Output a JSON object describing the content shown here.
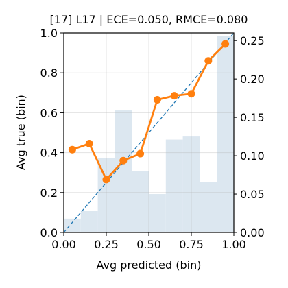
{
  "chart_data": {
    "type": "line",
    "title": "[17] L17 | ECE=0.050, RMCE=0.080",
    "xlabel": "Avg predicted (bin)",
    "ylabel": "Avg true (bin)",
    "xlim": [
      0,
      1
    ],
    "ylim": [
      0,
      1
    ],
    "ylim_right": [
      0,
      0.26
    ],
    "grid": true,
    "x_ticks": [
      "0.00",
      "0.25",
      "0.50",
      "0.75",
      "1.00"
    ],
    "y_ticks": [
      "0.0",
      "0.2",
      "0.4",
      "0.6",
      "0.8",
      "1.0"
    ],
    "y_right_ticks": [
      "0.00",
      "0.05",
      "0.10",
      "0.15",
      "0.20",
      "0.25"
    ],
    "histogram": {
      "axis": "right",
      "color": "#dce7f0",
      "bin_edges": [
        0,
        0.1,
        0.2,
        0.3,
        0.4,
        0.5,
        0.6,
        0.7,
        0.8,
        0.9,
        1.0
      ],
      "values": [
        0.018,
        0.028,
        0.097,
        0.159,
        0.08,
        0.05,
        0.121,
        0.125,
        0.066,
        0.256
      ]
    },
    "diagonal": {
      "from": [
        0,
        0
      ],
      "to": [
        1,
        1
      ],
      "color": "#1f77b4",
      "style": "dashed"
    },
    "series": [
      {
        "color": "#ff7f0e",
        "x": [
          0.05,
          0.15,
          0.25,
          0.35,
          0.45,
          0.55,
          0.65,
          0.75,
          0.85,
          0.95
        ],
        "y": [
          0.415,
          0.445,
          0.265,
          0.36,
          0.395,
          0.665,
          0.685,
          0.695,
          0.86,
          0.945
        ]
      }
    ]
  }
}
